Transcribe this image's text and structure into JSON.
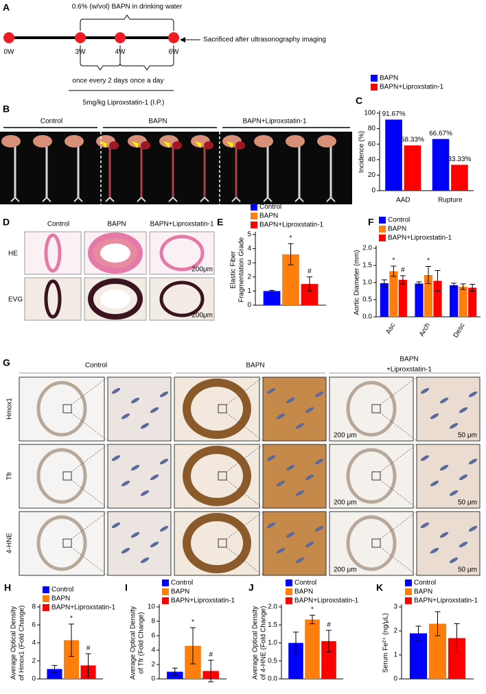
{
  "panel_labels": [
    "A",
    "B",
    "C",
    "D",
    "E",
    "F",
    "G",
    "H",
    "I",
    "J",
    "K"
  ],
  "timeline": {
    "drug": "0.6% (w/vol) BAPN in drinking water",
    "weeks": [
      "0W",
      "3W",
      "4W",
      "6W"
    ],
    "endpoint": "Sacrificed after ultrasonography imaging",
    "schedule": [
      "once every 2 days",
      "once a day"
    ],
    "treatment": "5mg/kg Liproxstatin-1 (I.P.)"
  },
  "photos": {
    "groups": [
      "Control",
      "BAPN",
      "BAPN+Liproxstatin-1"
    ]
  },
  "histology": {
    "groups": [
      "Control",
      "BAPN",
      "BAPN+Liproxstatin-1"
    ],
    "stains": [
      "HE",
      "EVG"
    ],
    "scale": "200μm"
  },
  "ihc": {
    "groups": [
      "Control",
      "BAPN",
      [
        "BAPN",
        "+Liproxstatin-1"
      ]
    ],
    "markers": [
      "Hmox1",
      "Tfr",
      "4-HNE"
    ],
    "scales": [
      "200 μm",
      "50 μm"
    ]
  },
  "chart_data": [
    {
      "type": "bar",
      "categories": [
        "AAD",
        "Rupture"
      ],
      "ylabel": [
        "Incidence (%)"
      ],
      "ylim": [
        0,
        100
      ],
      "yticks": [
        0,
        20,
        40,
        60,
        80,
        100
      ],
      "series": [
        {
          "name": "BAPN",
          "color": "#0000ff",
          "values": [
            91.67,
            66.67
          ],
          "value_labels": [
            "91.67%",
            "66.67%"
          ]
        },
        {
          "name": "BAPN+Liproxstatin-1",
          "color": "#ff0000",
          "values": [
            58.33,
            33.33
          ],
          "value_labels": [
            "58.33%",
            "33.33%"
          ]
        }
      ]
    },
    {
      "type": "bar",
      "categories": [
        null
      ],
      "ylabel": [
        "Elastic Fiber",
        "Fragmentation Grade"
      ],
      "ylim": [
        0,
        5
      ],
      "yticks": [
        0,
        1,
        2,
        3,
        4,
        5
      ],
      "series": [
        {
          "name": "Control",
          "color": "#0000ff",
          "values": [
            1
          ],
          "errors": [
            0.05
          ]
        },
        {
          "name": "BAPN",
          "color": "#ff7f0e",
          "values": [
            3.6
          ],
          "errors": [
            0.75
          ],
          "annotations": [
            "*"
          ]
        },
        {
          "name": "BAPN+Liproxstatin-1",
          "color": "#ff0000",
          "values": [
            1.5
          ],
          "errors": [
            0.5
          ],
          "annotations": [
            "#"
          ]
        }
      ]
    },
    {
      "type": "bar",
      "categories": [
        "Asc",
        "Arch",
        "Desc"
      ],
      "ylabel": [
        "Aortic Diameter (mm)"
      ],
      "ylim": [
        0,
        2
      ],
      "yticks": [
        {
          "value": 0,
          "label": "0.0"
        },
        0.5,
        {
          "value": 1,
          "label": "1.0"
        },
        1.5,
        {
          "value": 2,
          "label": "2.0"
        }
      ],
      "series": [
        {
          "name": "Control",
          "color": "#0000ff",
          "values": [
            0.98,
            0.97,
            0.92
          ],
          "errors": [
            0.1,
            0.05,
            0.06
          ]
        },
        {
          "name": "BAPN",
          "color": "#ff7f0e",
          "values": [
            1.33,
            1.22,
            0.88
          ],
          "errors": [
            0.15,
            0.25,
            0.08
          ],
          "annotations": [
            "*",
            "*",
            null
          ]
        },
        {
          "name": "BAPN+Liproxstatin-1",
          "color": "#ff0000",
          "values": [
            1.08,
            1.05,
            0.85
          ],
          "errors": [
            0.12,
            0.3,
            0.1
          ],
          "annotations": [
            "#",
            null,
            null
          ]
        }
      ]
    },
    {
      "type": "bar",
      "categories": [
        null
      ],
      "ylabel": [
        "Average Optical Density",
        "of Hmox1 (Fold Change)"
      ],
      "ylim": [
        0,
        8
      ],
      "yticks": [
        0,
        2,
        4,
        6,
        8
      ],
      "series": [
        {
          "name": "Control",
          "color": "#0000ff",
          "values": [
            1.1
          ],
          "errors": [
            0.4
          ]
        },
        {
          "name": "BAPN",
          "color": "#ff7f0e",
          "values": [
            4.3
          ],
          "errors": [
            1.8
          ],
          "annotations": [
            "*"
          ]
        },
        {
          "name": "BAPN+Liproxstatin-1",
          "color": "#ff0000",
          "values": [
            1.5
          ],
          "errors": [
            1.3
          ],
          "annotations": [
            "#"
          ]
        }
      ]
    },
    {
      "type": "bar",
      "categories": [
        null
      ],
      "ylabel": [
        "Average Optical Density",
        "of  Tfr (Fold Change)"
      ],
      "ylim": [
        0,
        10
      ],
      "yticks": [
        0,
        2,
        4,
        6,
        8,
        10
      ],
      "series": [
        {
          "name": "Control",
          "color": "#0000ff",
          "values": [
            1.0
          ],
          "errors": [
            0.5
          ]
        },
        {
          "name": "BAPN",
          "color": "#ff7f0e",
          "values": [
            4.6
          ],
          "errors": [
            2.5
          ],
          "annotations": [
            "*"
          ]
        },
        {
          "name": "BAPN+Liproxstatin-1",
          "color": "#ff0000",
          "values": [
            1.1
          ],
          "errors": [
            1.5
          ],
          "annotations": [
            "#"
          ]
        }
      ]
    },
    {
      "type": "bar",
      "categories": [
        null
      ],
      "ylabel": [
        "Average Optical Density",
        "of 4-HNE (Fold Change)"
      ],
      "ylim": [
        0,
        2
      ],
      "yticks": [
        {
          "value": 0,
          "label": "0.0"
        },
        0.5,
        {
          "value": 1,
          "label": "1.0"
        },
        1.5,
        {
          "value": 2,
          "label": "2.0"
        }
      ],
      "series": [
        {
          "name": "Control",
          "color": "#0000ff",
          "values": [
            1.0
          ],
          "errors": [
            0.3
          ]
        },
        {
          "name": "BAPN",
          "color": "#ff7f0e",
          "values": [
            1.65
          ],
          "errors": [
            0.12
          ],
          "annotations": [
            "*"
          ]
        },
        {
          "name": "BAPN+Liproxstatin-1",
          "color": "#ff0000",
          "values": [
            1.05
          ],
          "errors": [
            0.3
          ],
          "annotations": [
            "#"
          ]
        }
      ]
    },
    {
      "type": "bar",
      "categories": [
        null
      ],
      "ylabel": [
        "Serum Fe²⁺ (ng/μL)"
      ],
      "ylim": [
        0,
        3
      ],
      "yticks": [
        0,
        1,
        2,
        3
      ],
      "series": [
        {
          "name": "Control",
          "color": "#0000ff",
          "values": [
            1.9
          ],
          "errors": [
            0.3
          ]
        },
        {
          "name": "BAPN",
          "color": "#ff7f0e",
          "values": [
            2.3
          ],
          "errors": [
            0.5
          ]
        },
        {
          "name": "BAPN+Liproxstatin-1",
          "color": "#ff0000",
          "values": [
            1.7
          ],
          "errors": [
            0.6
          ]
        }
      ]
    }
  ]
}
